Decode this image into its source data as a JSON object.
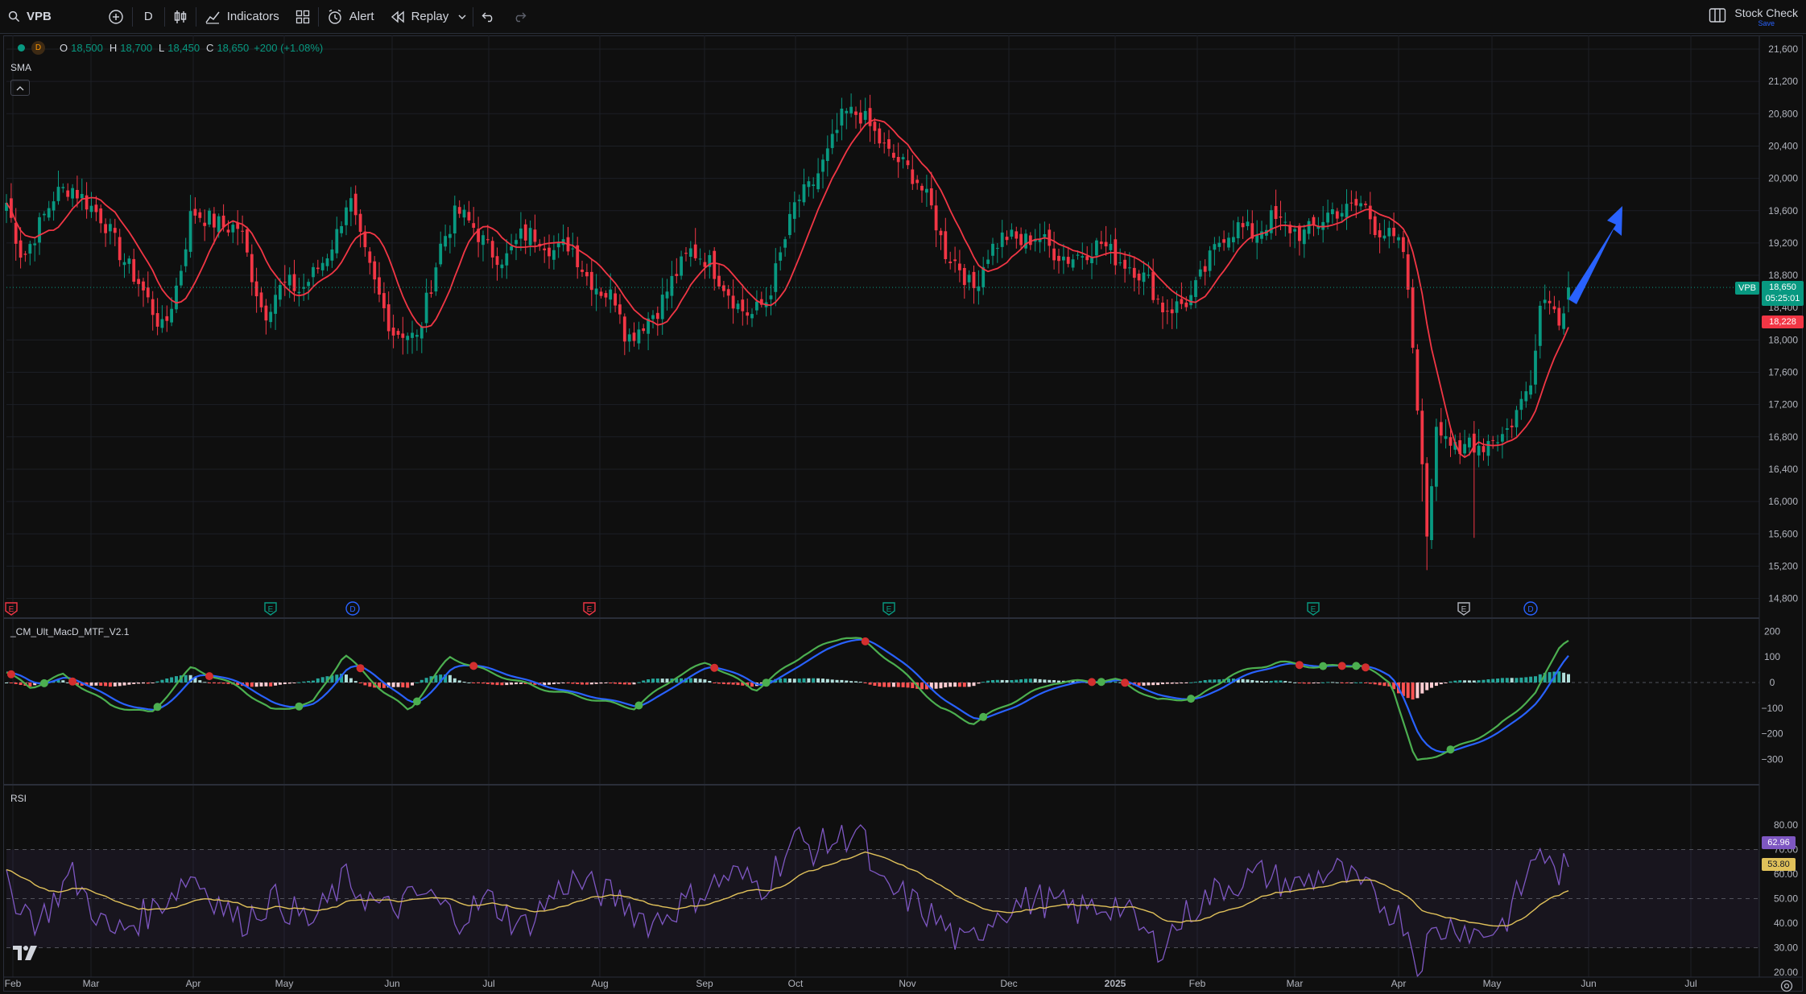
{
  "toolbar": {
    "symbol": "VPB",
    "interval": "D",
    "indicators_label": "Indicators",
    "alert_label": "Alert",
    "replay_label": "Replay",
    "layout_name": "Stock Check",
    "layout_status": "Save"
  },
  "legend": {
    "exchange_badge": "D",
    "open_label": "O",
    "open": "18,500",
    "high_label": "H",
    "high": "18,700",
    "low_label": "L",
    "low": "18,450",
    "close_label": "C",
    "close": "18,650",
    "change": "+200 (+1.08%)",
    "indicator_name": "SMA"
  },
  "price_axis": {
    "ticks": [
      "21,600",
      "21,200",
      "20,800",
      "20,400",
      "20,000",
      "19,600",
      "19,200",
      "18,800",
      "18,400",
      "18,000",
      "17,600",
      "17,200",
      "16,800",
      "16,400",
      "16,000",
      "15,600",
      "15,200",
      "14,800"
    ],
    "symbol_tag": "VPB",
    "last_price": "18,650",
    "countdown": "05:25:01",
    "sma_price": "18,228"
  },
  "macd": {
    "title": "_CM_Ult_MacD_MTF_V2.1",
    "ticks": [
      "200",
      "100",
      "0",
      "−100",
      "−200",
      "−300"
    ]
  },
  "rsi": {
    "title": "RSI",
    "ticks": [
      "80.00",
      "70.00",
      "60.00",
      "50.00",
      "40.00",
      "30.00",
      "20.00"
    ],
    "rsi_value": "62.96",
    "ma_value": "53.80"
  },
  "time_axis": {
    "labels": [
      "Feb",
      "Mar",
      "Apr",
      "May",
      "Jun",
      "Jul",
      "Aug",
      "Sep",
      "Oct",
      "Nov",
      "Dec",
      "2025",
      "Feb",
      "Mar",
      "Apr",
      "May",
      "Jun",
      "Jul"
    ]
  },
  "events": [
    {
      "type": "E",
      "color": "#f23645"
    },
    {
      "type": "E",
      "color": "#089981"
    },
    {
      "type": "D",
      "color": "#2962ff"
    },
    {
      "type": "E",
      "color": "#f23645"
    },
    {
      "type": "E",
      "color": "#089981"
    },
    {
      "type": "E",
      "color": "#089981"
    },
    {
      "type": "E",
      "color": "#b2b5be"
    },
    {
      "type": "D",
      "color": "#2962ff"
    }
  ],
  "colors": {
    "up": "#089981",
    "down": "#f23645",
    "sma": "#f23645",
    "macd_line": "#4caf50",
    "signal_line": "#2962ff",
    "rsi_line": "#7e57c2",
    "rsi_ma": "#e0c15a",
    "arrow": "#2962ff",
    "background": "#0f0f0f"
  },
  "icons": [
    "search-icon",
    "add-compare-icon",
    "bar-style-icon",
    "indicators-icon",
    "templates-icon",
    "alert-icon",
    "replay-icon",
    "chevron-down-icon",
    "undo-icon",
    "redo-icon",
    "layout-icon",
    "tradingview-logo-icon",
    "settings-icon",
    "collapse-icon"
  ]
}
